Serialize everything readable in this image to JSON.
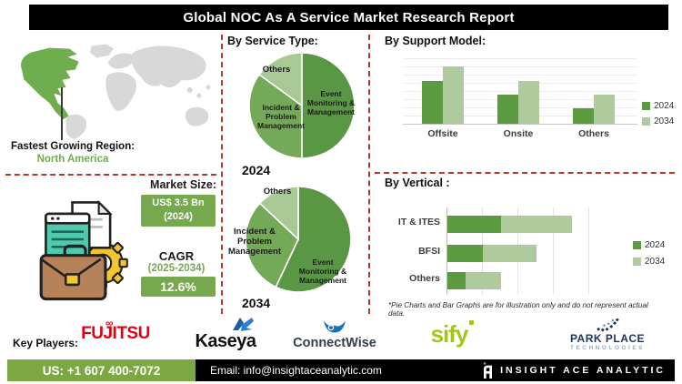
{
  "title": "Global NOC As A Service Market Research Report",
  "fastest_region": {
    "label": "Fastest Growing Region:",
    "value": "North America"
  },
  "market": {
    "size_label": "Market Size:",
    "size_value": "US$ 3.5 Bn",
    "size_year": "(2024)",
    "cagr_label": "CAGR",
    "cagr_period": "(2025-2034)",
    "cagr_value": "12.6%"
  },
  "chart_data": [
    {
      "type": "pie",
      "section": "By Service Type:",
      "year": "2024",
      "labels": [
        "Event Monitoring & Management",
        "Incident & Problem Management",
        "Others"
      ],
      "values": [
        50,
        35,
        15
      ],
      "legend_position": "inside",
      "note": "illustrative percentages estimated from slice angles"
    },
    {
      "type": "pie",
      "section": "By Service Type:",
      "year": "2034",
      "labels": [
        "Event Monitoring & Management",
        "Incident & Problem Management",
        "Others"
      ],
      "values": [
        57,
        30,
        13
      ],
      "legend_position": "inside",
      "note": "illustrative percentages estimated from slice angles"
    },
    {
      "type": "bar",
      "title": "By Support Model:",
      "categories": [
        "Offsite",
        "Onsite",
        "Others"
      ],
      "series": [
        {
          "name": "2024",
          "values": [
            66,
            45,
            23
          ]
        },
        {
          "name": "2034",
          "values": [
            88,
            66,
            45
          ]
        }
      ],
      "ylim": [
        0,
        100
      ],
      "grid": true,
      "legend_position": "right",
      "note": "illustrative heights, no numeric axis shown"
    },
    {
      "type": "bar",
      "orientation": "horizontal",
      "stacked": true,
      "title": "By Vertical :",
      "categories": [
        "IT & ITES",
        "BFSI",
        "Others"
      ],
      "series": [
        {
          "name": "2024",
          "values": [
            15,
            10,
            5
          ]
        },
        {
          "name": "2034",
          "values": [
            20,
            15,
            10
          ]
        }
      ],
      "xlim": [
        0,
        40
      ],
      "grid": true,
      "legend_position": "right",
      "note": "illustrative lengths, no numeric axis shown"
    }
  ],
  "disclaimer": "*Pie Charts and Bar Graphs are for illustration only and do not represent actual data.",
  "key_players": {
    "label": "Key Players:",
    "brands": [
      {
        "name": "FUJITSU"
      },
      {
        "name": "Kaseya"
      },
      {
        "name": "ConnectWise"
      },
      {
        "name": "sify"
      },
      {
        "name": "PARK PLACE",
        "sub": "TECHNOLOGIES"
      }
    ]
  },
  "footer": {
    "phone": "US: +1 607 400-7072",
    "email": "Email: info@insightaceanalytic.com",
    "brand": "INSIGHT ACE ANALYTIC"
  },
  "icons": {
    "map": "world-map-north-america-highlighted",
    "illustration": "documents-briefcase-gear",
    "fujitsu_mark": "infinity-swirl",
    "kaseya_mark": "blue-angular-k",
    "connectwise_mark": "blue-bird-shield",
    "parkplace_mark": "scattered-dots-arrow",
    "insight_ace_mark": "stylized-letter-a"
  },
  "colors": {
    "accent_green": "#76a84e",
    "footer_green": "#7ba843",
    "series_2024": "#5b9a41",
    "series_2034": "#afcb9e",
    "pie_event": "#5a9744",
    "pie_incident": "#74a957",
    "pie_others": "#a8c995",
    "map_land": "#d8d8d8",
    "map_highlight": "#6fae4e",
    "dashed_divider": "#b03a30",
    "fujitsu_red": "#e40012",
    "kaseya_blue": "#2a7fd4",
    "connectwise_blue": "#1a6fb5",
    "sify_lime": "#a2c617",
    "parkplace_navy": "#1c355e"
  }
}
